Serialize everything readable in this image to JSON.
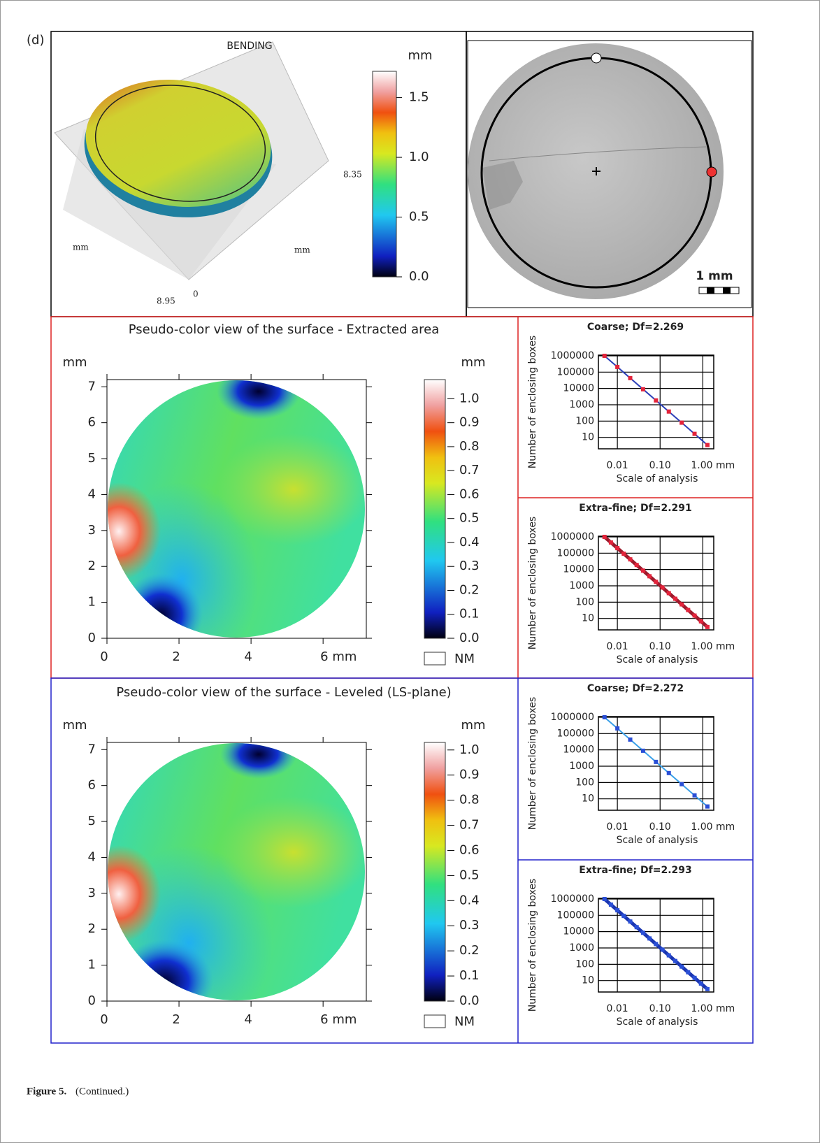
{
  "panel_label": "(d)",
  "bending": {
    "title": "BENDING",
    "unit": "mm",
    "colorbar_lim": [
      0,
      1.72
    ],
    "colorbar_ticks": [
      {
        "value": 0,
        "label": "0.0"
      },
      0.5,
      {
        "value": 1,
        "label": "1.0"
      },
      1.5
    ],
    "axis_labels": [
      "mm",
      "mm"
    ],
    "dims": [
      "8.35",
      "8.95",
      "0"
    ]
  },
  "photo": {
    "scale_label": "1 mm"
  },
  "maps": [
    {
      "title": "Pseudo-color view of the surface - Extracted area",
      "y_unit": "mm",
      "colorbar_unit": "mm",
      "xlim": [
        0,
        7.2
      ],
      "xticks": [
        0,
        2,
        4,
        {
          "value": 6,
          "label": "6 mm"
        }
      ],
      "ylim": [
        0,
        7.2
      ],
      "yticks": [
        0,
        1,
        2,
        3,
        4,
        5,
        6,
        7
      ],
      "colorbar_lim": [
        0,
        1.08
      ],
      "colorbar_ticks": [
        {
          "value": 0,
          "label": "0.0"
        },
        0.1,
        0.2,
        0.3,
        0.4,
        0.5,
        0.6,
        0.7,
        0.8,
        0.9,
        {
          "value": 1,
          "label": "1.0"
        }
      ],
      "nm_label": "NM"
    },
    {
      "title": "Pseudo-color view of the surface - Leveled (LS-plane)",
      "y_unit": "mm",
      "colorbar_unit": "mm",
      "xlim": [
        0,
        7.2
      ],
      "xticks": [
        0,
        2,
        4,
        {
          "value": 6,
          "label": "6 mm"
        }
      ],
      "ylim": [
        0,
        7.2
      ],
      "yticks": [
        0,
        1,
        2,
        3,
        4,
        5,
        6,
        7
      ],
      "colorbar_lim": [
        0,
        1.03
      ],
      "colorbar_ticks": [
        {
          "value": 0,
          "label": "0.0"
        },
        0.1,
        0.2,
        0.3,
        0.4,
        0.5,
        0.6,
        0.7,
        0.8,
        0.9,
        {
          "value": 1,
          "label": "1.0"
        }
      ],
      "nm_label": "NM"
    }
  ],
  "chart_data": [
    {
      "type": "line",
      "title": "Coarse; Df=2.269",
      "ylabel": "Number of enclosing boxes",
      "xlabel": "Scale of analysis",
      "log_x": true,
      "log_y": true,
      "grid": true,
      "color": "#e3243b",
      "line_color": "#2b3fb8",
      "xlim": [
        0.0036,
        1.8
      ],
      "ylim": [
        2,
        1100000
      ],
      "xticks": [
        0.01,
        {
          "value": 0.1,
          "label": "0.10"
        },
        {
          "value": 1,
          "label": "1.00 mm"
        }
      ],
      "yticks": [
        10,
        100,
        1000,
        10000,
        100000,
        1000000
      ],
      "x": [
        0.005,
        0.01,
        0.02,
        0.04,
        0.08,
        0.16,
        0.32,
        0.64,
        1.28
      ],
      "values": [
        1000000,
        207400,
        43000,
        8920,
        1850,
        384,
        80,
        16.5,
        3.4
      ]
    },
    {
      "type": "line",
      "title": "Extra-fine; Df=2.291",
      "ylabel": "Number of enclosing boxes",
      "xlabel": "Scale of analysis",
      "log_x": true,
      "log_y": true,
      "grid": true,
      "color": "#e3243b",
      "line_color": "#9b1a2c",
      "xlim": [
        0.0036,
        1.8
      ],
      "ylim": [
        2,
        1100000
      ],
      "xticks": [
        0.01,
        {
          "value": 0.1,
          "label": "0.10"
        },
        {
          "value": 1,
          "label": "1.00 mm"
        }
      ],
      "yticks": [
        10,
        100,
        1000,
        10000,
        100000,
        1000000
      ],
      "x": [
        0.005,
        0.00707,
        0.01,
        0.01414,
        0.02,
        0.02828,
        0.04,
        0.05657,
        0.08,
        0.1131,
        0.16,
        0.2263,
        0.32,
        0.4525,
        0.64,
        0.905,
        1.28
      ],
      "values": [
        1000000,
        452100,
        204400,
        92400,
        41800,
        18900,
        8540,
        3860,
        1750,
        790,
        357,
        161,
        73,
        33,
        15,
        6.7,
        3
      ]
    },
    {
      "type": "line",
      "title": "Coarse; Df=2.272",
      "ylabel": "Number of enclosing boxes",
      "xlabel": "Scale of analysis",
      "log_x": true,
      "log_y": true,
      "grid": true,
      "color": "#2a4fd6",
      "line_color": "#3aa0e8",
      "xlim": [
        0.0036,
        1.8
      ],
      "ylim": [
        2,
        1100000
      ],
      "xticks": [
        0.01,
        {
          "value": 0.1,
          "label": "0.10"
        },
        {
          "value": 1,
          "label": "1.00 mm"
        }
      ],
      "yticks": [
        10,
        100,
        1000,
        10000,
        100000,
        1000000
      ],
      "x": [
        0.005,
        0.01,
        0.02,
        0.04,
        0.08,
        0.16,
        0.32,
        0.64,
        1.28
      ],
      "values": [
        1000000,
        207000,
        42800,
        8850,
        1830,
        380,
        79,
        16.3,
        3.4
      ]
    },
    {
      "type": "line",
      "title": "Extra-fine; Df=2.293",
      "ylabel": "Number of enclosing boxes",
      "xlabel": "Scale of analysis",
      "log_x": true,
      "log_y": true,
      "grid": true,
      "color": "#2a4fd6",
      "line_color": "#1a35b0",
      "xlim": [
        0.0036,
        1.8
      ],
      "ylim": [
        2,
        1100000
      ],
      "xticks": [
        0.01,
        {
          "value": 0.1,
          "label": "0.10"
        },
        {
          "value": 1,
          "label": "1.00 mm"
        }
      ],
      "yticks": [
        10,
        100,
        1000,
        10000,
        100000,
        1000000
      ],
      "x": [
        0.005,
        0.00707,
        0.01,
        0.01414,
        0.02,
        0.02828,
        0.04,
        0.05657,
        0.08,
        0.1131,
        0.16,
        0.2263,
        0.32,
        0.4525,
        0.64,
        0.905,
        1.28
      ],
      "values": [
        1000000,
        451600,
        203900,
        92100,
        41600,
        18800,
        8490,
        3830,
        1730,
        782,
        353,
        159,
        72,
        32.5,
        14.7,
        6.6,
        3
      ]
    }
  ],
  "caption": {
    "label": "Figure 5.",
    "text": "(Continued.)"
  }
}
